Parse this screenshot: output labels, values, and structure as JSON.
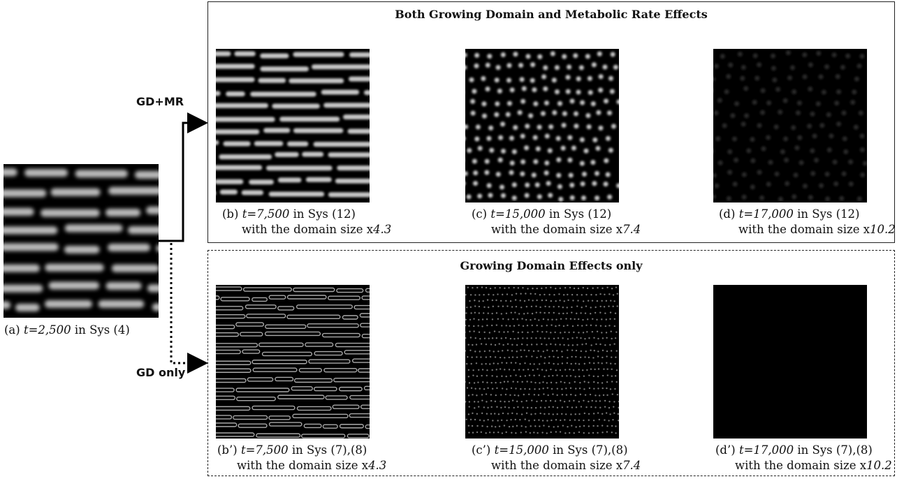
{
  "panel_a": {
    "label": "(a)",
    "time": "t=2,500",
    "system": "in Sys (4)"
  },
  "arrows": {
    "upper": "GD+MR",
    "lower": "GD only"
  },
  "groups": [
    {
      "title": "Both Growing Domain and Metabolic Rate Effects",
      "panels": [
        {
          "label": "(b)",
          "time": "t=7,500",
          "system": "in Sys (12)",
          "size_text": "with the domain size x",
          "size": "4.3"
        },
        {
          "label": "(c)",
          "time": "t=15,000",
          "system": "in Sys (12)",
          "size_text": "with the domain size x",
          "size": "7.4"
        },
        {
          "label": "(d)",
          "time": "t=17,000",
          "system": "in Sys (12)",
          "size_text": "with the domain size x",
          "size": "10.2"
        }
      ]
    },
    {
      "title": "Growing Domain Effects only",
      "panels": [
        {
          "label": "(b’)",
          "time": "t=7,500",
          "system": "in Sys (7),(8)",
          "size_text": "with the domain size x",
          "size": "4.3"
        },
        {
          "label": "(c’)",
          "time": "t=15,000",
          "system": "in Sys (7),(8)",
          "size_text": "with the domain size x",
          "size": "7.4"
        },
        {
          "label": "(d’)",
          "time": "t=17,000",
          "system": "in Sys (7),(8)",
          "size_text": "with the domain size x",
          "size": "10.2"
        }
      ]
    }
  ]
}
